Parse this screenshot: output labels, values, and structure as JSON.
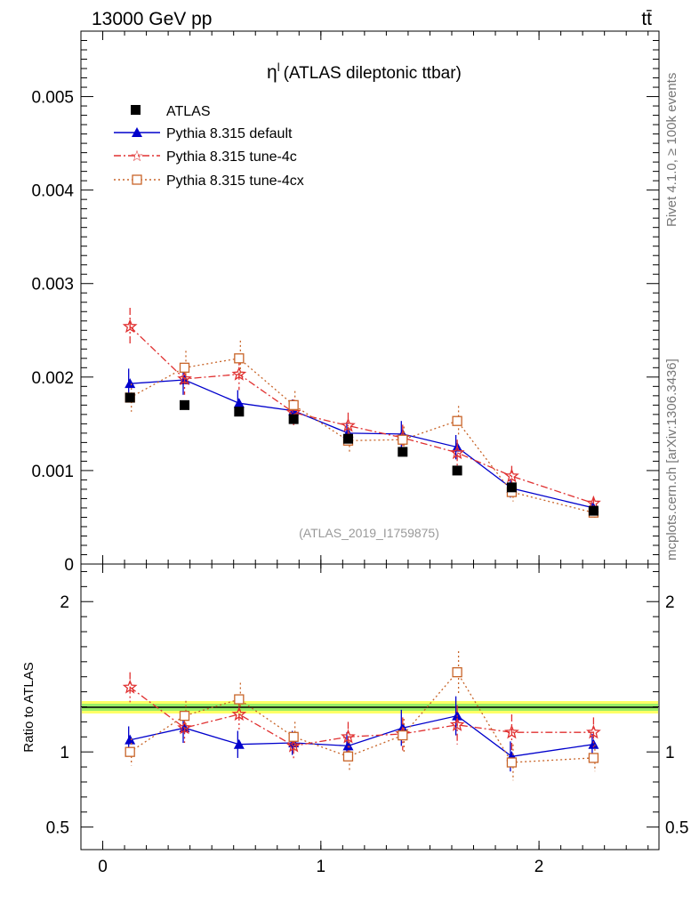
{
  "header": {
    "left": "13000 GeV pp",
    "right": "tt̄"
  },
  "side_labels": {
    "top": "Rivet 4.1.0, ≥ 100k events",
    "bottom": "mcplots.cern.ch [arXiv:1306.3436]"
  },
  "chart_data": {
    "type": "scatter",
    "title": "η",
    "title_sup": "l",
    "title_rest": "(ATLAS dileptonic ttbar)",
    "watermark": "(ATLAS_2019_I1759875)",
    "ylabel_ratio": "Ratio to ATLAS",
    "xlim": [
      -0.1,
      2.55
    ],
    "ylim": [
      0,
      0.0057
    ],
    "ratio_ylim": [
      0.35,
      2.25
    ],
    "x_ticks": [
      {
        "v": 0,
        "label": "0"
      },
      {
        "v": 1,
        "label": "1"
      },
      {
        "v": 2,
        "label": "2"
      }
    ],
    "y_ticks": [
      {
        "v": 0,
        "label": "0"
      },
      {
        "v": 0.001,
        "label": "0.001"
      },
      {
        "v": 0.002,
        "label": "0.002"
      },
      {
        "v": 0.003,
        "label": "0.003"
      },
      {
        "v": 0.004,
        "label": "0.004"
      },
      {
        "v": 0.005,
        "label": "0.005"
      }
    ],
    "ratio_y_ticks": [
      {
        "v": 0.5,
        "label": "0.5"
      },
      {
        "v": 1,
        "label": "1"
      },
      {
        "v": 2,
        "label": "2"
      }
    ],
    "x": [
      0.125,
      0.375,
      0.625,
      0.875,
      1.125,
      1.375,
      1.625,
      1.875,
      2.25
    ],
    "data": {
      "name": "ATLAS",
      "values": [
        0.00178,
        0.0017,
        0.00163,
        0.00155,
        0.00134,
        0.0012,
        0.001,
        0.00082,
        0.00057
      ]
    },
    "series": [
      {
        "name": "Pythia 8.315 default",
        "color": "#0000cc",
        "values": [
          0.00193,
          0.00197,
          0.00172,
          0.00164,
          0.0014,
          0.00139,
          0.00125,
          0.00081,
          0.0006
        ],
        "errors": [
          0.00016,
          0.00016,
          0.00014,
          0.00012,
          0.00012,
          0.00014,
          0.00013,
          0.0001,
          6e-05
        ],
        "ratio": [
          1.08,
          1.16,
          1.05,
          1.06,
          1.04,
          1.16,
          1.24,
          0.97,
          1.05
        ],
        "ratio_err": [
          0.09,
          0.1,
          0.09,
          0.08,
          0.09,
          0.12,
          0.13,
          0.1,
          0.07
        ]
      },
      {
        "name": "Pythia 8.315 tune-4c",
        "color": "#e03030",
        "values": [
          0.00254,
          0.00198,
          0.00203,
          0.00162,
          0.00148,
          0.00135,
          0.00119,
          0.00094,
          0.00065
        ],
        "errors": [
          0.0002,
          0.00017,
          0.00017,
          0.00014,
          0.00014,
          0.00014,
          0.00014,
          0.00011,
          7e-05
        ],
        "ratio": [
          1.43,
          1.16,
          1.25,
          1.04,
          1.1,
          1.12,
          1.18,
          1.13,
          1.13
        ],
        "ratio_err": [
          0.1,
          0.1,
          0.1,
          0.09,
          0.1,
          0.11,
          0.13,
          0.12,
          0.1
        ]
      },
      {
        "name": "Pythia 8.315 tune-4cx",
        "color": "#c86428",
        "values": [
          0.00178,
          0.0021,
          0.0022,
          0.0017,
          0.00132,
          0.00133,
          0.00153,
          0.00077,
          0.00055
        ],
        "errors": [
          0.00015,
          0.00018,
          0.00019,
          0.00015,
          0.00014,
          0.00014,
          0.00016,
          0.0001,
          6e-05
        ],
        "ratio": [
          1.0,
          1.24,
          1.35,
          1.1,
          0.97,
          1.11,
          1.53,
          0.93,
          0.96
        ],
        "ratio_err": [
          0.09,
          0.1,
          0.11,
          0.1,
          0.1,
          0.11,
          0.14,
          0.12,
          0.09
        ]
      }
    ],
    "legend": [
      "ATLAS",
      "Pythia 8.315 default",
      "Pythia 8.315 tune-4c",
      "Pythia 8.315 tune-4cx"
    ]
  }
}
